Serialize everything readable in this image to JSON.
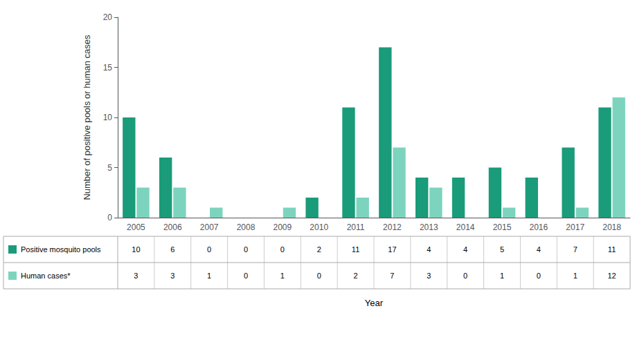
{
  "chart_data": {
    "type": "bar",
    "categories": [
      "2005",
      "2006",
      "2007",
      "2008",
      "2009",
      "2010",
      "2011",
      "2012",
      "2013",
      "2014",
      "2015",
      "2016",
      "2017",
      "2018"
    ],
    "series": [
      {
        "name": "Positive mosquito pools",
        "color": "#1a9b7a",
        "values": [
          10,
          6,
          0,
          0,
          0,
          2,
          11,
          17,
          4,
          4,
          5,
          4,
          7,
          11
        ]
      },
      {
        "name": "Human cases*",
        "color": "#7dd4be",
        "values": [
          3,
          3,
          1,
          0,
          1,
          0,
          2,
          7,
          3,
          0,
          1,
          0,
          1,
          12
        ]
      }
    ],
    "ylabel": "Number of positive pools or human cases",
    "xlabel": "Year",
    "ylim": [
      0,
      20
    ],
    "yticks": [
      0,
      5,
      10,
      15,
      20
    ],
    "grid": false
  }
}
